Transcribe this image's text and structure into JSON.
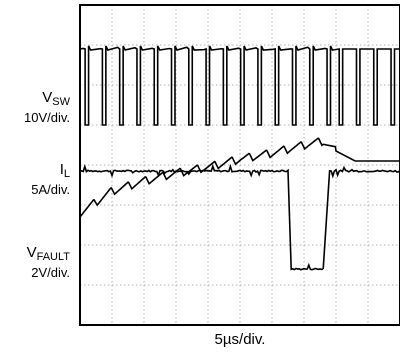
{
  "chart_data": {
    "type": "line",
    "title": "",
    "timebase": "5µs/div.",
    "grid": true,
    "x_divisions": 10,
    "y_divisions": 8,
    "x_unit": "µs",
    "x_range_us": [
      0,
      50
    ],
    "series": [
      {
        "name_main": "V",
        "name_sub": "SW",
        "scale": "10V/div.",
        "description_values": {
          "high_level_div": 6.9,
          "low_level_div": 5.0,
          "switching_period_us": 2.7,
          "duty_high": 0.8,
          "fault_stop_us": 40
        }
      },
      {
        "name_main": "I",
        "name_sub": "L",
        "scale": "5A/div.",
        "points_us_div": [
          [
            0,
            2.8
          ],
          [
            5,
            3.35
          ],
          [
            10,
            3.6
          ],
          [
            15,
            3.8
          ],
          [
            20,
            3.95
          ],
          [
            25,
            4.15
          ],
          [
            30,
            4.3
          ],
          [
            35,
            4.5
          ],
          [
            38,
            4.6
          ],
          [
            40,
            4.35
          ],
          [
            43,
            4.1
          ],
          [
            50,
            4.1
          ]
        ],
        "ripple_div": 0.2
      },
      {
        "name_main": "V",
        "name_sub": "FAULT",
        "scale": "2V/div.",
        "points_us_div": [
          [
            0,
            3.85
          ],
          [
            32.5,
            3.85
          ],
          [
            33,
            1.4
          ],
          [
            38,
            1.4
          ],
          [
            39,
            3.85
          ],
          [
            50,
            3.85
          ]
        ]
      }
    ]
  }
}
